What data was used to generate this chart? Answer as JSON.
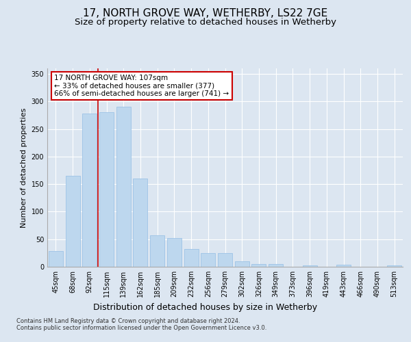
{
  "title": "17, NORTH GROVE WAY, WETHERBY, LS22 7GE",
  "subtitle": "Size of property relative to detached houses in Wetherby",
  "xlabel": "Distribution of detached houses by size in Wetherby",
  "ylabel": "Number of detached properties",
  "categories": [
    "45sqm",
    "68sqm",
    "92sqm",
    "115sqm",
    "139sqm",
    "162sqm",
    "185sqm",
    "209sqm",
    "232sqm",
    "256sqm",
    "279sqm",
    "302sqm",
    "326sqm",
    "349sqm",
    "373sqm",
    "396sqm",
    "419sqm",
    "443sqm",
    "466sqm",
    "490sqm",
    "513sqm"
  ],
  "values": [
    28,
    165,
    278,
    280,
    290,
    160,
    57,
    52,
    32,
    25,
    25,
    10,
    5,
    5,
    0,
    3,
    0,
    4,
    0,
    0,
    3
  ],
  "bar_color": "#bdd7ee",
  "bar_edge_color": "#9dc3e6",
  "background_color": "#dce6f1",
  "plot_bg_color": "#dce6f1",
  "annotation_text": "17 NORTH GROVE WAY: 107sqm\n← 33% of detached houses are smaller (377)\n66% of semi-detached houses are larger (741) →",
  "annotation_box_facecolor": "#ffffff",
  "annotation_box_edgecolor": "#cc0000",
  "ylim": [
    0,
    360
  ],
  "yticks": [
    0,
    50,
    100,
    150,
    200,
    250,
    300,
    350
  ],
  "footer": "Contains HM Land Registry data © Crown copyright and database right 2024.\nContains public sector information licensed under the Open Government Licence v3.0.",
  "red_line_color": "#cc0000",
  "red_line_x": 2.5,
  "title_fontsize": 11,
  "subtitle_fontsize": 9.5,
  "ylabel_fontsize": 8,
  "xlabel_fontsize": 9,
  "tick_fontsize": 7,
  "footer_fontsize": 6
}
